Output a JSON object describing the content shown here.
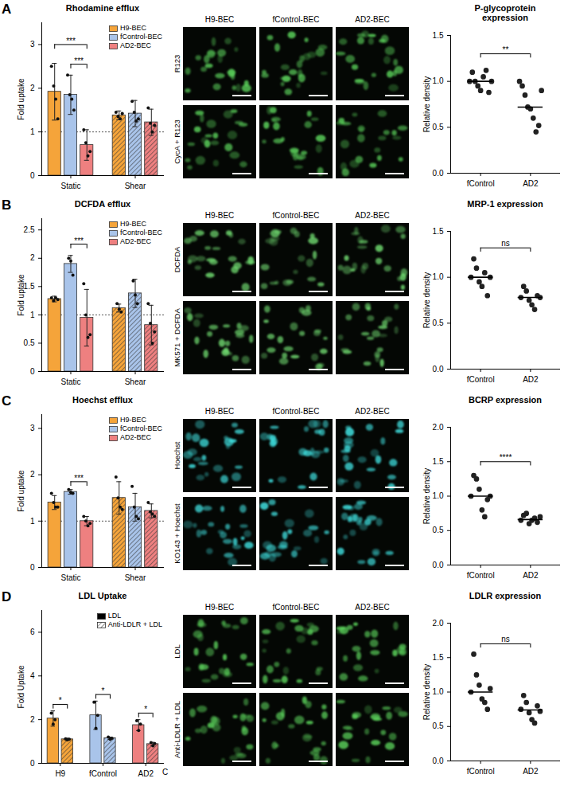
{
  "chart_data": [
    {
      "type": "bar",
      "title": "Rhodamine efflux",
      "ylabel": "Fold uptake",
      "categories": [
        "Static",
        "Shear"
      ],
      "series": [
        {
          "name": "H9-BEC",
          "color": "#f5a43a",
          "values": [
            1.92,
            1.38
          ],
          "errors": [
            0.65,
            0.1
          ],
          "points": [
            [
              2.5,
              2.05,
              1.75,
              1.3
            ],
            [
              1.45,
              1.35,
              1.3,
              1.42
            ]
          ]
        },
        {
          "name": "fControl-BEC",
          "color": "#a9c4ea",
          "values": [
            1.85,
            1.42
          ],
          "errors": [
            0.45,
            0.3
          ],
          "points": [
            [
              2.3,
              1.85,
              1.75,
              1.5
            ],
            [
              1.7,
              1.45,
              1.25,
              1.3
            ]
          ]
        },
        {
          "name": "AD2-BEC",
          "color": "#ee8080",
          "values": [
            0.7,
            1.22
          ],
          "errors": [
            0.35,
            0.3
          ],
          "points": [
            [
              1.05,
              0.75,
              0.45,
              0.55
            ],
            [
              1.55,
              1.2,
              1.0,
              1.15
            ]
          ]
        }
      ],
      "ylim": [
        0,
        3.5
      ],
      "yticks": [
        0,
        1,
        2,
        3
      ],
      "reference_line": 1,
      "significance": [
        {
          "category": "Static",
          "from": "H9-BEC",
          "to": "AD2-BEC",
          "y": 3.0,
          "label": "***"
        },
        {
          "category": "Static",
          "from": "fControl-BEC",
          "to": "AD2-BEC",
          "y": 2.55,
          "label": "***"
        }
      ],
      "legend": "top-right"
    },
    {
      "type": "scatter",
      "title": "P-glycoprotein expression",
      "ylabel": "Relative density",
      "categories": [
        "fControl",
        "AD2"
      ],
      "values": [
        1.0,
        0.72
      ],
      "points": [
        [
          1.0,
          1.1,
          1.0,
          0.95,
          0.9,
          1.05,
          1.12,
          0.88,
          1.0
        ],
        [
          1.0,
          0.95,
          0.85,
          0.72,
          0.7,
          0.6,
          0.45,
          0.52,
          0.9
        ]
      ],
      "marker": "circle",
      "ylim": [
        0,
        1.5
      ],
      "yticks": [
        {
          "value": 0,
          "label": "0.0"
        },
        {
          "value": 0.5,
          "label": "0.5"
        },
        {
          "value": 1,
          "label": "1.0"
        },
        {
          "value": 1.5,
          "label": "1.5"
        }
      ],
      "significance": [
        {
          "from": "fControl",
          "to": "AD2",
          "y": 1.3,
          "label": "**"
        }
      ]
    },
    {
      "type": "bar",
      "title": "DCFDA efflux",
      "ylabel": "Fold uptake",
      "categories": [
        "Static",
        "Shear"
      ],
      "series": [
        {
          "name": "H9-BEC",
          "color": "#f5a43a",
          "values": [
            1.28,
            1.12
          ],
          "errors": [
            0.05,
            0.07
          ],
          "points": [
            [
              1.3,
              1.25,
              1.3,
              1.27
            ],
            [
              1.2,
              1.1,
              1.05
            ]
          ]
        },
        {
          "name": "fControl-BEC",
          "color": "#a9c4ea",
          "values": [
            1.9,
            1.38
          ],
          "errors": [
            0.15,
            0.25
          ],
          "points": [
            [
              2.0,
              1.95,
              1.7
            ],
            [
              1.6,
              1.35,
              1.2
            ]
          ]
        },
        {
          "name": "AD2-BEC",
          "color": "#ee8080",
          "values": [
            0.95,
            0.82
          ],
          "errors": [
            0.5,
            0.35
          ],
          "points": [
            [
              1.55,
              1.0,
              0.6,
              0.65
            ],
            [
              1.2,
              0.85,
              0.5,
              0.7
            ]
          ]
        }
      ],
      "ylim": [
        0,
        2.7
      ],
      "yticks": [
        0,
        0.5,
        1,
        1.5,
        2,
        2.5
      ],
      "reference_line": 1,
      "significance": [
        {
          "category": "Static",
          "from": "fControl-BEC",
          "to": "AD2-BEC",
          "y": 2.25,
          "label": "***"
        }
      ],
      "legend": "top-right"
    },
    {
      "type": "scatter",
      "title": "MRP-1 expression",
      "ylabel": "Relative density",
      "categories": [
        "fControl",
        "AD2"
      ],
      "values": [
        1.0,
        0.78
      ],
      "points": [
        [
          1.0,
          1.2,
          1.1,
          0.95,
          0.9,
          1.05,
          0.8,
          1.0
        ],
        [
          0.78,
          0.9,
          0.85,
          0.75,
          0.7,
          0.65,
          0.8,
          0.78
        ]
      ],
      "marker": "circle",
      "ylim": [
        0,
        1.5
      ],
      "yticks": [
        {
          "value": 0,
          "label": "0.0"
        },
        {
          "value": 0.5,
          "label": "0.5"
        },
        {
          "value": 1,
          "label": "1.0"
        },
        {
          "value": 1.5,
          "label": "1.5"
        }
      ],
      "significance": [
        {
          "from": "fControl",
          "to": "AD2",
          "y": 1.32,
          "label": "ns"
        }
      ]
    },
    {
      "type": "bar",
      "title": "Hoechst efflux",
      "ylabel": "Fold uptake",
      "categories": [
        "Static",
        "Shear"
      ],
      "series": [
        {
          "name": "H9-BEC",
          "color": "#f5a43a",
          "values": [
            1.4,
            1.5
          ],
          "errors": [
            0.15,
            0.35
          ],
          "points": [
            [
              1.6,
              1.4,
              1.3,
              1.3
            ],
            [
              1.95,
              1.5,
              1.3,
              1.25
            ]
          ]
        },
        {
          "name": "fControl-BEC",
          "color": "#a9c4ea",
          "values": [
            1.63,
            1.3
          ],
          "errors": [
            0.05,
            0.3
          ],
          "points": [
            [
              1.68,
              1.62,
              1.6
            ],
            [
              1.75,
              1.3,
              1.1,
              1.05
            ]
          ]
        },
        {
          "name": "AD2-BEC",
          "color": "#ee8080",
          "values": [
            1.0,
            1.22
          ],
          "errors": [
            0.1,
            0.15
          ],
          "points": [
            [
              1.1,
              1.0,
              0.9,
              0.95
            ],
            [
              1.4,
              1.2,
              1.15,
              1.1
            ]
          ]
        }
      ],
      "ylim": [
        0,
        3.3
      ],
      "yticks": [
        0,
        1,
        2,
        3
      ],
      "reference_line": 1,
      "significance": [
        {
          "category": "Static",
          "from": "fControl-BEC",
          "to": "AD2-BEC",
          "y": 1.85,
          "label": "***"
        }
      ],
      "legend": "top-right"
    },
    {
      "type": "scatter",
      "title": "BCRP expression",
      "ylabel": "Relative density",
      "categories": [
        "fControl",
        "AD2"
      ],
      "values": [
        1.0,
        0.66
      ],
      "points": [
        [
          1.0,
          1.3,
          1.25,
          1.1,
          0.8,
          0.7,
          0.95,
          1.0
        ],
        [
          0.65,
          0.72,
          0.75,
          0.6,
          0.65,
          0.68,
          0.62,
          0.7
        ]
      ],
      "marker": "circle",
      "ylim": [
        0,
        2
      ],
      "yticks": [
        {
          "value": 0,
          "label": "0.0"
        },
        {
          "value": 0.5,
          "label": "0.5"
        },
        {
          "value": 1,
          "label": "1.0"
        },
        {
          "value": 1.5,
          "label": "1.5"
        },
        {
          "value": 2,
          "label": "2.0"
        }
      ],
      "significance": [
        {
          "from": "fControl",
          "to": "AD2",
          "y": 1.5,
          "label": "****"
        }
      ]
    },
    {
      "type": "bar",
      "title": "LDL Uptake",
      "ylabel": "Fold Uptake",
      "categories": [
        "H9",
        "fControl",
        "AD2"
      ],
      "colors": [
        "#f5a43a",
        "#a9c4ea",
        "#ee8080"
      ],
      "series": [
        {
          "name": "LDL",
          "color": "#000000",
          "values": [
            2.05,
            2.2,
            1.75
          ],
          "errors": [
            0.35,
            0.65,
            0.25
          ],
          "points": [
            [
              2.3,
              1.8,
              2.0
            ],
            [
              2.8,
              1.6,
              2.2
            ],
            [
              1.95,
              1.5,
              1.8
            ]
          ]
        },
        {
          "name": "Anti-LDLR + LDL",
          "color": "#000000",
          "values": [
            1.1,
            1.15,
            0.88
          ],
          "errors": [
            0.05,
            0.05,
            0.08
          ],
          "points": [
            [
              1.12,
              1.08,
              1.1
            ],
            [
              1.2,
              1.1,
              1.15
            ],
            [
              0.95,
              0.8,
              0.9
            ]
          ]
        }
      ],
      "ylim": [
        0,
        7
      ],
      "yticks": [
        0,
        2,
        4,
        6
      ],
      "significance": [
        {
          "category": "H9",
          "from": "LDL",
          "to": "Anti-LDLR + LDL",
          "y": 2.7,
          "label": "*"
        },
        {
          "category": "fControl",
          "from": "LDL",
          "to": "Anti-LDLR + LDL",
          "y": 3.15,
          "label": "*"
        },
        {
          "category": "AD2",
          "from": "LDL",
          "to": "Anti-LDLR + LDL",
          "y": 2.3,
          "label": "*"
        }
      ],
      "annotations": [
        {
          "text": "C"
        }
      ],
      "legend": "top-right"
    },
    {
      "type": "scatter",
      "title": "LDLR expression",
      "ylabel": "Relative density",
      "categories": [
        "fControl",
        "AD2"
      ],
      "values": [
        1.0,
        0.74
      ],
      "points": [
        [
          1.0,
          1.55,
          1.25,
          1.1,
          0.9,
          0.85,
          0.75,
          1.05
        ],
        [
          0.75,
          0.95,
          0.85,
          0.7,
          0.6,
          0.55,
          0.8,
          0.72
        ]
      ],
      "marker": "circle",
      "ylim": [
        0,
        2
      ],
      "yticks": [
        {
          "value": 0,
          "label": "0.0"
        },
        {
          "value": 0.5,
          "label": "0.5"
        },
        {
          "value": 1,
          "label": "1.0"
        },
        {
          "value": 1.5,
          "label": "1.5"
        },
        {
          "value": 2,
          "label": "2.0"
        }
      ],
      "significance": [
        {
          "from": "fControl",
          "to": "AD2",
          "y": 1.7,
          "label": "ns"
        }
      ]
    }
  ],
  "panels": [
    {
      "letter": "A",
      "images": {
        "columns": [
          "H9-BEC",
          "fControl-BEC",
          "AD2-BEC"
        ],
        "rows": [
          "R123",
          "CycA + R123"
        ],
        "color": "#5bd35b"
      }
    },
    {
      "letter": "B",
      "images": {
        "columns": [
          "H9-BEC",
          "fControl-BEC",
          "AD2-BEC"
        ],
        "rows": [
          "DCFDA",
          "MK571 + DCFDA"
        ],
        "color": "#6fd86f"
      }
    },
    {
      "letter": "C",
      "images": {
        "columns": [
          "H9-BEC",
          "fControl-BEC",
          "AD2-BEC"
        ],
        "rows": [
          "Hoechst",
          "KO143 + Hoechst"
        ],
        "color": "#3fe0e0"
      }
    },
    {
      "letter": "D",
      "images": {
        "columns": [
          "H9-BEC",
          "fControl-BEC",
          "AD2-BEC"
        ],
        "rows": [
          "LDL",
          "Anti-LDLR + LDL"
        ],
        "color": "#5bd35b"
      }
    }
  ]
}
